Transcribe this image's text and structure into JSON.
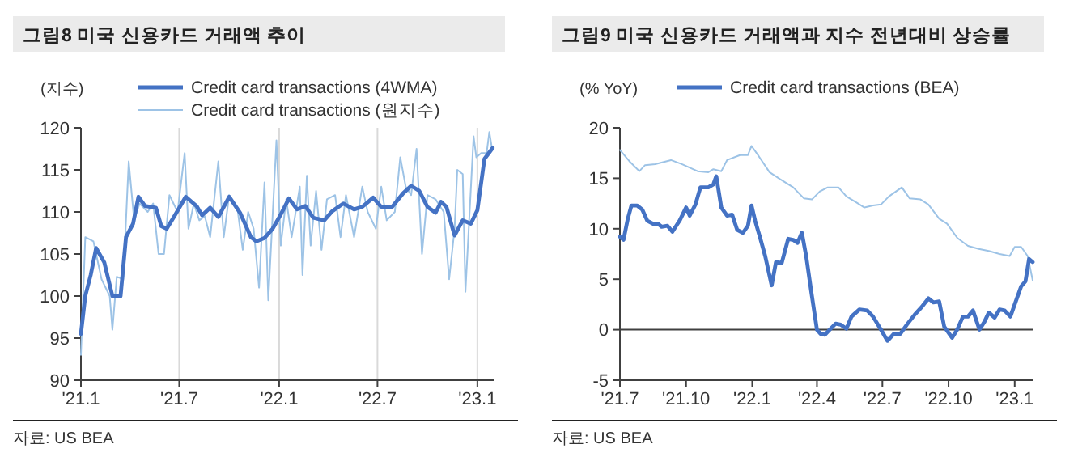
{
  "chart_data": [
    {
      "type": "line",
      "title": "그림8 미국 신용카드 거래액 추이",
      "ylabel": "(지수)",
      "annotations": [
        "자료: US BEA"
      ],
      "legend": "top",
      "grid": "x",
      "xlim": [
        "2021-01-01",
        "2023-01-31"
      ],
      "xticks": [
        {
          "value": "2021-01-01",
          "label": "'21.1"
        },
        {
          "value": "2021-07-01",
          "label": "'21.7"
        },
        {
          "value": "2022-01-01",
          "label": "'22.1"
        },
        {
          "value": "2022-07-01",
          "label": "'22.7"
        },
        {
          "value": "2023-01-01",
          "label": "'23.1"
        }
      ],
      "ylim": [
        90,
        120
      ],
      "yticks": [
        90,
        95,
        100,
        105,
        110,
        115,
        120
      ],
      "series": [
        {
          "name": "Credit card transactions (4WMA)",
          "color": "#4472c4",
          "x": [
            "2021-01-01",
            "2021-01-09",
            "2021-01-19",
            "2021-01-29",
            "2021-02-13",
            "2021-02-28",
            "2021-03-15",
            "2021-03-25",
            "2021-04-07",
            "2021-04-17",
            "2021-04-29",
            "2021-05-19",
            "2021-05-29",
            "2021-06-08",
            "2021-06-23",
            "2021-07-13",
            "2021-08-02",
            "2021-08-12",
            "2021-08-27",
            "2021-09-11",
            "2021-10-01",
            "2021-10-21",
            "2021-11-10",
            "2021-11-20",
            "2021-12-05",
            "2021-12-20",
            "2022-01-04",
            "2022-01-19",
            "2022-02-03",
            "2022-02-18",
            "2022-03-05",
            "2022-03-25",
            "2022-04-09",
            "2022-04-29",
            "2022-05-19",
            "2022-06-03",
            "2022-06-23",
            "2022-07-08",
            "2022-07-28",
            "2022-08-17",
            "2022-09-01",
            "2022-09-16",
            "2022-10-01",
            "2022-10-16",
            "2022-10-26",
            "2022-11-05",
            "2022-11-20",
            "2022-12-05",
            "2022-12-20",
            "2023-01-01",
            "2023-01-14",
            "2023-01-29"
          ],
          "values": [
            95.5,
            100,
            102.5,
            105.7,
            104,
            100,
            100,
            107,
            108.6,
            111.8,
            110.7,
            110.5,
            108.3,
            108,
            109.6,
            111.8,
            110.7,
            109.6,
            110.5,
            109.4,
            111.8,
            109.9,
            107,
            106.5,
            106.9,
            108,
            109.7,
            111.6,
            110.3,
            110.7,
            109.3,
            109,
            110.1,
            111,
            110.3,
            110.6,
            111.7,
            110.6,
            110.6,
            112.2,
            113.1,
            112.5,
            110.6,
            109.9,
            111.2,
            110.6,
            107.2,
            109,
            108.6,
            110.2,
            116.3,
            117.6
          ]
        },
        {
          "name": "Credit card transactions  (원지수)",
          "color": "#9dc3e6",
          "x": [
            "2021-01-01",
            "2021-01-09",
            "2021-01-24",
            "2021-02-08",
            "2021-02-23",
            "2021-02-28",
            "2021-03-08",
            "2021-03-20",
            "2021-03-30",
            "2021-04-09",
            "2021-04-19",
            "2021-05-04",
            "2021-05-14",
            "2021-05-24",
            "2021-06-03",
            "2021-06-13",
            "2021-06-28",
            "2021-07-11",
            "2021-07-18",
            "2021-07-28",
            "2021-08-07",
            "2021-08-17",
            "2021-08-27",
            "2021-09-11",
            "2021-09-21",
            "2021-10-01",
            "2021-10-16",
            "2021-10-26",
            "2021-11-05",
            "2021-11-15",
            "2021-11-25",
            "2021-12-05",
            "2021-12-12",
            "2021-12-27",
            "2022-01-04",
            "2022-01-14",
            "2022-01-24",
            "2022-02-08",
            "2022-02-13",
            "2022-02-21",
            "2022-02-28",
            "2022-03-10",
            "2022-03-20",
            "2022-03-30",
            "2022-04-14",
            "2022-04-24",
            "2022-05-04",
            "2022-05-19",
            "2022-06-03",
            "2022-06-13",
            "2022-06-28",
            "2022-07-08",
            "2022-07-18",
            "2022-08-02",
            "2022-08-12",
            "2022-08-22",
            "2022-09-01",
            "2022-09-11",
            "2022-09-21",
            "2022-10-01",
            "2022-10-16",
            "2022-10-31",
            "2022-11-10",
            "2022-11-20",
            "2022-11-25",
            "2022-12-05",
            "2022-12-10",
            "2022-12-25",
            "2022-12-30",
            "2023-01-08",
            "2023-01-18",
            "2023-01-23",
            "2023-01-28"
          ],
          "values": [
            93,
            107,
            106.5,
            102,
            100,
            96,
            102.3,
            102,
            116,
            109,
            111,
            110,
            111,
            105,
            105,
            112,
            110,
            117,
            108,
            111,
            109,
            109.5,
            107,
            116,
            107,
            112,
            110.5,
            105.5,
            110,
            108,
            101,
            113.5,
            99.5,
            118.5,
            106,
            111.5,
            107,
            113,
            102.5,
            114.3,
            106,
            112.5,
            105.5,
            111.5,
            112,
            107,
            112,
            107,
            113,
            110,
            108,
            113,
            109,
            110,
            116.5,
            113,
            112,
            117.5,
            105,
            112,
            111.5,
            110,
            102,
            108,
            115,
            114.5,
            100.5,
            119,
            116.5,
            117,
            117,
            119.5,
            117.5
          ]
        }
      ]
    },
    {
      "type": "line",
      "title": "그림9 미국 신용카드 거래액과 지수 전년대비 상승률",
      "ylabel": "(% YoY)",
      "annotations": [
        "자료: US BEA"
      ],
      "legend": "top",
      "xlim": [
        "2021-07-01",
        "2023-01-26"
      ],
      "xticks": [
        {
          "value": "2021-07-01",
          "label": "'21.7"
        },
        {
          "value": "2021-10-01",
          "label": "'21.10"
        },
        {
          "value": "2022-01-01",
          "label": "'22.1"
        },
        {
          "value": "2022-04-01",
          "label": "'22.4"
        },
        {
          "value": "2022-07-01",
          "label": "'22.7"
        },
        {
          "value": "2022-10-01",
          "label": "'22.10"
        },
        {
          "value": "2023-01-01",
          "label": "'23.1"
        }
      ],
      "ylim": [
        -5,
        20
      ],
      "yticks": [
        -5,
        0,
        5,
        10,
        15,
        20
      ],
      "ref_lines": [
        {
          "axis": "y",
          "value": 0,
          "color": "#404040"
        }
      ],
      "series": [
        {
          "name": "Credit card transactions (BEA)",
          "color": "#4472c4",
          "x": [
            "2021-07-01",
            "2021-07-06",
            "2021-07-12",
            "2021-07-17",
            "2021-07-25",
            "2021-08-01",
            "2021-08-08",
            "2021-08-16",
            "2021-08-23",
            "2021-08-28",
            "2021-09-05",
            "2021-09-12",
            "2021-09-22",
            "2021-10-01",
            "2021-10-06",
            "2021-10-14",
            "2021-10-21",
            "2021-11-01",
            "2021-11-08",
            "2021-11-12",
            "2021-11-19",
            "2021-11-27",
            "2021-12-04",
            "2021-12-11",
            "2021-12-19",
            "2021-12-26",
            "2021-12-31",
            "2022-01-05",
            "2022-01-12",
            "2022-01-19",
            "2022-01-28",
            "2022-02-03",
            "2022-02-11",
            "2022-02-20",
            "2022-02-27",
            "2022-03-05",
            "2022-03-11",
            "2022-03-17",
            "2022-03-24",
            "2022-04-01",
            "2022-04-06",
            "2022-04-12",
            "2022-04-20",
            "2022-04-27",
            "2022-05-04",
            "2022-05-12",
            "2022-05-19",
            "2022-05-30",
            "2022-06-10",
            "2022-06-18",
            "2022-06-29",
            "2022-07-08",
            "2022-07-17",
            "2022-07-26",
            "2022-08-04",
            "2022-08-15",
            "2022-08-24",
            "2022-09-03",
            "2022-09-10",
            "2022-09-18",
            "2022-09-25",
            "2022-10-06",
            "2022-10-13",
            "2022-10-21",
            "2022-10-28",
            "2022-11-04",
            "2022-11-13",
            "2022-11-20",
            "2022-11-26",
            "2022-12-04",
            "2022-12-11",
            "2022-12-18",
            "2022-12-26",
            "2023-01-02",
            "2023-01-10",
            "2023-01-16",
            "2023-01-21",
            "2023-01-26"
          ],
          "values": [
            9.2,
            8.9,
            11,
            12.3,
            12.3,
            11.9,
            10.8,
            10.5,
            10.5,
            10.2,
            10.3,
            9.7,
            10.8,
            12.1,
            11.3,
            12.4,
            14.1,
            14.1,
            14.4,
            15.2,
            12.1,
            11.3,
            11.4,
            9.9,
            9.6,
            10.3,
            12.3,
            10.8,
            9.1,
            7.3,
            4.4,
            6.7,
            6.6,
            9,
            8.9,
            8.6,
            9.6,
            7.3,
            3.8,
            0,
            -0.4,
            -0.5,
            0.1,
            0.6,
            0.5,
            0.1,
            1.3,
            2,
            1.9,
            1.3,
            0,
            -1.1,
            -0.4,
            -0.4,
            0.5,
            1.5,
            2.2,
            3.1,
            2.7,
            2.8,
            0.3,
            -0.8,
            0,
            1.3,
            1.3,
            1.9,
            0,
            0.8,
            1.7,
            1.2,
            2,
            1.9,
            1.3,
            2.7,
            4.3,
            4.8,
            7,
            6.7
          ]
        },
        {
          "color": "#9dc3e6",
          "x": [
            "2021-07-01",
            "2021-07-14",
            "2021-07-28",
            "2021-08-05",
            "2021-08-19",
            "2021-09-10",
            "2021-09-25",
            "2021-10-17",
            "2021-11-01",
            "2021-11-08",
            "2021-11-19",
            "2021-11-27",
            "2021-12-15",
            "2021-12-26",
            "2021-12-31",
            "2022-01-10",
            "2022-01-25",
            "2022-02-09",
            "2022-02-27",
            "2022-03-14",
            "2022-03-25",
            "2022-04-05",
            "2022-04-16",
            "2022-05-01",
            "2022-05-12",
            "2022-05-26",
            "2022-06-06",
            "2022-06-18",
            "2022-06-29",
            "2022-07-10",
            "2022-07-28",
            "2022-08-08",
            "2022-08-23",
            "2022-09-03",
            "2022-09-18",
            "2022-09-29",
            "2022-10-13",
            "2022-10-28",
            "2022-11-12",
            "2022-11-26",
            "2022-12-11",
            "2022-12-25",
            "2023-01-01",
            "2023-01-10",
            "2023-01-19",
            "2023-01-26"
          ],
          "values": [
            17.8,
            16.7,
            15.7,
            16.3,
            16.4,
            16.8,
            16.4,
            15.7,
            15.6,
            15.9,
            15.7,
            16.8,
            17.3,
            17.3,
            18.2,
            17.2,
            15.6,
            14.9,
            14.1,
            13,
            12.9,
            13.7,
            14.1,
            14.1,
            13.2,
            12.6,
            12.1,
            12.3,
            12.4,
            13.2,
            14.1,
            13,
            12.9,
            12.4,
            11,
            10.5,
            9.1,
            8.3,
            8,
            7.8,
            7.5,
            7.3,
            8.2,
            8.2,
            7.3,
            4.9
          ]
        }
      ]
    }
  ]
}
